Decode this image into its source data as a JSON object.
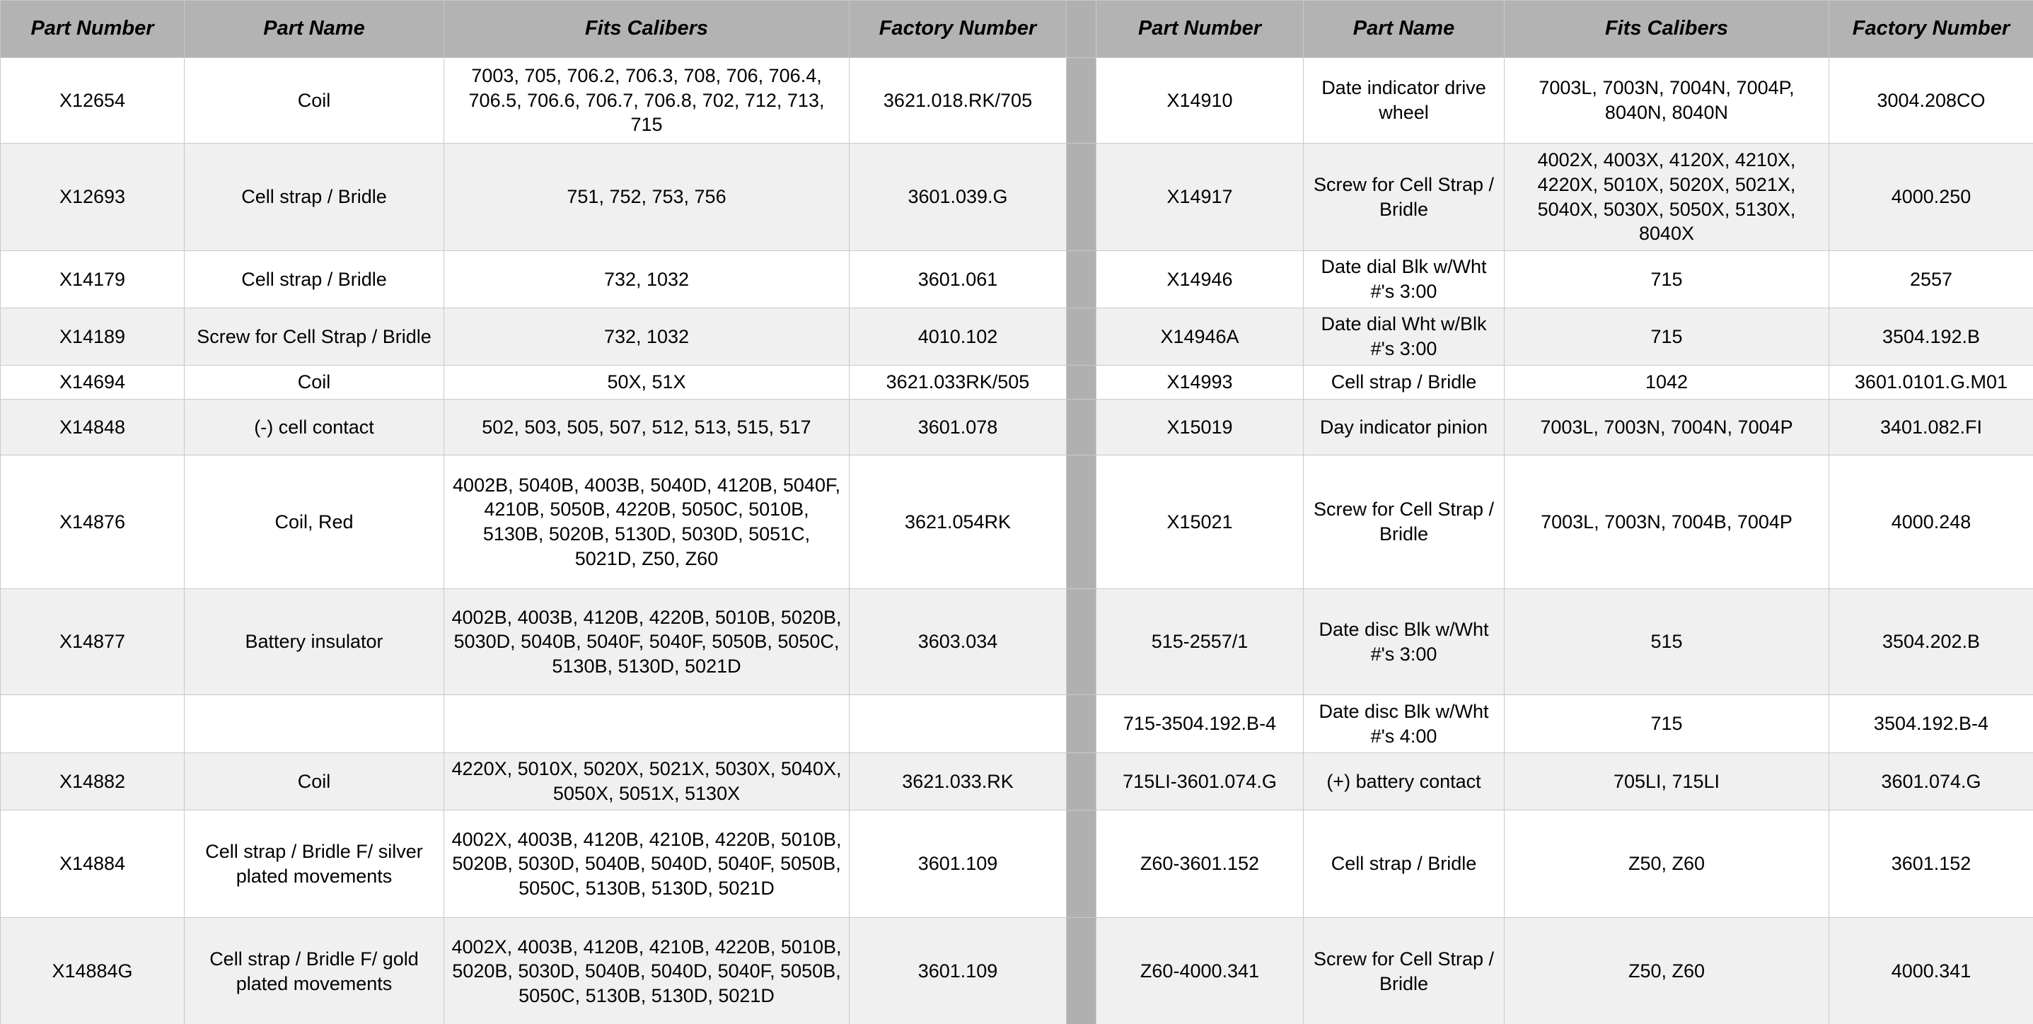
{
  "headers": {
    "part_number": "Part Number",
    "part_name": "Part Name",
    "fits_calibers": "Fits Calibers",
    "factory_number": "Factory Number"
  },
  "rows": [
    {
      "left": {
        "part_number": "X12654",
        "part_name": "Coil",
        "fits_calibers": "7003, 705, 706.2, 706.3, 708, 706, 706.4, 706.5, 706.6, 706.7, 706.8, 702, 712, 713, 715",
        "factory_number": "3621.018.RK/705"
      },
      "right": {
        "part_number": "X14910",
        "part_name": "Date indicator drive wheel",
        "fits_calibers": "7003L, 7003N, 7004N, 7004P, 8040N, 8040N",
        "factory_number": "3004.208CO"
      }
    },
    {
      "left": {
        "part_number": "X12693",
        "part_name": "Cell strap / Bridle",
        "fits_calibers": "751, 752, 753, 756",
        "factory_number": "3601.039.G"
      },
      "right": {
        "part_number": "X14917",
        "part_name": "Screw for Cell Strap / Bridle",
        "fits_calibers": "4002X, 4003X, 4120X, 4210X, 4220X, 5010X, 5020X, 5021X, 5040X, 5030X, 5050X, 5130X, 8040X",
        "factory_number": "4000.250"
      }
    },
    {
      "left": {
        "part_number": "X14179",
        "part_name": "Cell strap / Bridle",
        "fits_calibers": "732, 1032",
        "factory_number": "3601.061"
      },
      "right": {
        "part_number": "X14946",
        "part_name": "Date dial Blk w/Wht #'s 3:00",
        "fits_calibers": "715",
        "factory_number": "2557"
      }
    },
    {
      "left": {
        "part_number": "X14189",
        "part_name": "Screw for Cell Strap / Bridle",
        "fits_calibers": "732, 1032",
        "factory_number": "4010.102"
      },
      "right": {
        "part_number": "X14946A",
        "part_name": "Date dial Wht w/Blk #'s 3:00",
        "fits_calibers": "715",
        "factory_number": "3504.192.B"
      }
    },
    {
      "left": {
        "part_number": "X14694",
        "part_name": "Coil",
        "fits_calibers": "50X, 51X",
        "factory_number": "3621.033RK/505"
      },
      "right": {
        "part_number": "X14993",
        "part_name": "Cell strap / Bridle",
        "fits_calibers": "1042",
        "factory_number": "3601.0101.G.M01"
      }
    },
    {
      "left": {
        "part_number": "X14848",
        "part_name": "(-) cell contact",
        "fits_calibers": "502, 503, 505, 507, 512, 513, 515, 517",
        "factory_number": "3601.078"
      },
      "right": {
        "part_number": "X15019",
        "part_name": "Day indicator pinion",
        "fits_calibers": "7003L, 7003N, 7004N, 7004P",
        "factory_number": "3401.082.FI"
      }
    },
    {
      "left": {
        "part_number": "X14876",
        "part_name": "Coil, Red",
        "fits_calibers": "4002B, 5040B, 4003B, 5040D, 4120B, 5040F, 4210B, 5050B, 4220B, 5050C, 5010B, 5130B, 5020B, 5130D, 5030D, 5051C, 5021D, Z50, Z60",
        "factory_number": "3621.054RK"
      },
      "right": {
        "part_number": "X15021",
        "part_name": "Screw for Cell Strap / Bridle",
        "fits_calibers": "7003L, 7003N, 7004B, 7004P",
        "factory_number": "4000.248"
      }
    },
    {
      "left": {
        "part_number": "X14877",
        "part_name": "Battery insulator",
        "fits_calibers": "4002B, 4003B, 4120B, 4220B, 5010B, 5020B, 5030D, 5040B, 5040F, 5040F, 5050B, 5050C, 5130B, 5130D, 5021D",
        "factory_number": "3603.034"
      },
      "right": {
        "part_number": "515-2557/1",
        "part_name": "Date disc Blk w/Wht #'s 3:00",
        "fits_calibers": "515",
        "factory_number": "3504.202.B"
      }
    },
    {
      "left": {
        "part_number": "",
        "part_name": "",
        "fits_calibers": "",
        "factory_number": ""
      },
      "right": {
        "part_number": "715-3504.192.B-4",
        "part_name": "Date disc Blk w/Wht #'s 4:00",
        "fits_calibers": "715",
        "factory_number": "3504.192.B-4"
      }
    },
    {
      "left": {
        "part_number": "X14882",
        "part_name": "Coil",
        "fits_calibers": "4220X, 5010X, 5020X, 5021X, 5030X, 5040X, 5050X, 5051X, 5130X",
        "factory_number": "3621.033.RK"
      },
      "right": {
        "part_number": "715LI-3601.074.G",
        "part_name": "(+) battery contact",
        "fits_calibers": "705LI, 715LI",
        "factory_number": "3601.074.G"
      }
    },
    {
      "left": {
        "part_number": "X14884",
        "part_name": "Cell strap / Bridle F/ silver plated movements",
        "fits_calibers": "4002X, 4003B, 4120B, 4210B, 4220B, 5010B, 5020B, 5030D, 5040B, 5040D, 5040F, 5050B, 5050C, 5130B, 5130D, 5021D",
        "factory_number": "3601.109"
      },
      "right": {
        "part_number": "Z60-3601.152",
        "part_name": "Cell strap / Bridle",
        "fits_calibers": "Z50, Z60",
        "factory_number": "3601.152"
      }
    },
    {
      "left": {
        "part_number": "X14884G",
        "part_name": "Cell strap / Bridle F/ gold plated movements",
        "fits_calibers": "4002X, 4003B, 4120B, 4210B, 4220B, 5010B, 5020B, 5030D, 5040B, 5040D, 5040F, 5050B, 5050C, 5130B, 5130D, 5021D",
        "factory_number": "3601.109"
      },
      "right": {
        "part_number": "Z60-4000.341",
        "part_name": "Screw for Cell Strap / Bridle",
        "fits_calibers": "Z50, Z60",
        "factory_number": "4000.341"
      }
    }
  ]
}
